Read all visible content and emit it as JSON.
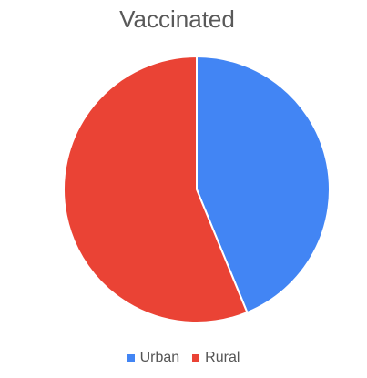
{
  "chart_data": {
    "type": "pie",
    "title": "Vaccinated",
    "slices": [
      {
        "label": "Urban",
        "value": 43.8,
        "color": "#4285f4"
      },
      {
        "label": "Rural",
        "value": 56.2,
        "color": "#ea4335"
      }
    ],
    "legend": {
      "position": "bottom"
    }
  }
}
